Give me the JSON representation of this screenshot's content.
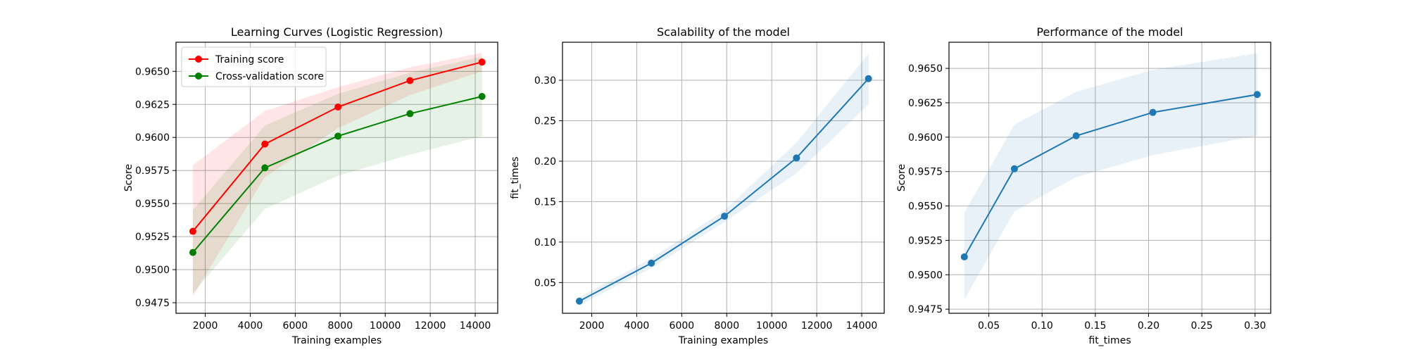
{
  "chart_data": [
    {
      "type": "line",
      "title": "Learning Curves (Logistic Regression)",
      "xlabel": "Training examples",
      "ylabel": "Score",
      "xlim": [
        700,
        15000
      ],
      "ylim": [
        0.9467,
        0.9672
      ],
      "xticks": [
        2000,
        4000,
        6000,
        8000,
        10000,
        12000,
        14000
      ],
      "yticks": [
        0.9475,
        0.95,
        0.9525,
        0.955,
        0.9575,
        0.96,
        0.9625,
        0.965
      ],
      "grid": true,
      "legend": "top-left",
      "x": [
        1450,
        4650,
        7900,
        11100,
        14300
      ],
      "series": [
        {
          "name": "Training score",
          "color": "#ff0000",
          "values": [
            0.9529,
            0.9595,
            0.9623,
            0.9643,
            0.9657
          ],
          "band_low": [
            0.948,
            0.957,
            0.9607,
            0.9632,
            0.965
          ],
          "band_high": [
            0.9579,
            0.962,
            0.9638,
            0.9653,
            0.9664
          ]
        },
        {
          "name": "Cross-validation score",
          "color": "#008000",
          "values": [
            0.9513,
            0.9577,
            0.9601,
            0.9618,
            0.9631
          ],
          "band_low": [
            0.9482,
            0.9546,
            0.9571,
            0.9587,
            0.9601
          ],
          "band_high": [
            0.9545,
            0.9609,
            0.9633,
            0.9649,
            0.9661
          ]
        }
      ]
    },
    {
      "type": "line",
      "title": "Scalability of the model",
      "xlabel": "Training examples",
      "ylabel": "fit_times",
      "xlim": [
        700,
        15000
      ],
      "ylim": [
        0.012,
        0.347
      ],
      "xticks": [
        2000,
        4000,
        6000,
        8000,
        10000,
        12000,
        14000
      ],
      "yticks": [
        0.05,
        0.1,
        0.15,
        0.2,
        0.25,
        0.3
      ],
      "grid": true,
      "x": [
        1450,
        4650,
        7900,
        11100,
        14300
      ],
      "series": [
        {
          "color": "#1f77b4",
          "values": [
            0.027,
            0.074,
            0.132,
            0.204,
            0.302
          ],
          "band_low": [
            0.022,
            0.068,
            0.125,
            0.185,
            0.27
          ],
          "band_high": [
            0.032,
            0.08,
            0.139,
            0.223,
            0.333
          ]
        }
      ]
    },
    {
      "type": "line",
      "title": "Performance of the model",
      "xlabel": "fit_times",
      "ylabel": "Score",
      "xlim": [
        0.0126,
        0.3147
      ],
      "ylim": [
        0.9472,
        0.9669
      ],
      "xticks": [
        0.05,
        0.1,
        0.15,
        0.2,
        0.25,
        0.3
      ],
      "yticks": [
        0.9475,
        0.95,
        0.9525,
        0.955,
        0.9575,
        0.96,
        0.9625,
        0.965
      ],
      "grid": true,
      "x": [
        0.027,
        0.074,
        0.132,
        0.204,
        0.302
      ],
      "series": [
        {
          "color": "#1f77b4",
          "values": [
            0.9513,
            0.9577,
            0.9601,
            0.9618,
            0.9631
          ],
          "band_low": [
            0.9482,
            0.9546,
            0.9571,
            0.9587,
            0.9601
          ],
          "band_high": [
            0.9545,
            0.9609,
            0.9633,
            0.9649,
            0.9661
          ]
        }
      ]
    }
  ]
}
